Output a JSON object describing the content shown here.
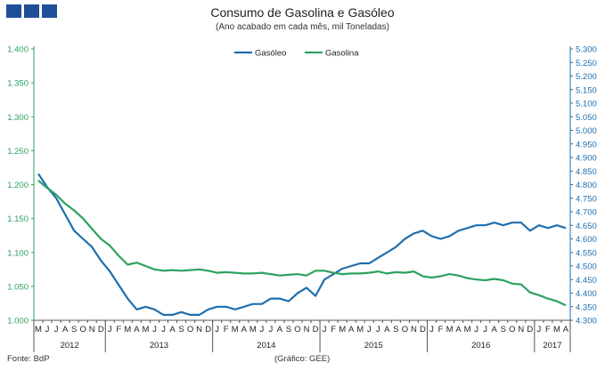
{
  "header": {
    "title": "Consumo de Gasolina e Gasóleo",
    "subtitle": "(Ano acabado em cada mês,  mil Toneladas)"
  },
  "footer": {
    "source": "Fonte: BdP",
    "credit": "(Gráfico: GEE)"
  },
  "colors": {
    "logo": "#1f4e9a",
    "gasoleo": "#1f6fae",
    "gasolina": "#2ca25f",
    "axis_left_text": "#2ca25f",
    "axis_right_text": "#1f6fae",
    "axis_line_left": "#2ca25f",
    "axis_line_right": "#1f6fae"
  },
  "chart_data": {
    "type": "line",
    "title": "Consumo de Gasolina e Gasóleo",
    "subtitle": "(Ano acabado em cada mês,  mil Toneladas)",
    "x": [
      "2012-05",
      "2012-06",
      "2012-07",
      "2012-08",
      "2012-09",
      "2012-10",
      "2012-11",
      "2012-12",
      "2013-01",
      "2013-02",
      "2013-03",
      "2013-04",
      "2013-05",
      "2013-06",
      "2013-07",
      "2013-08",
      "2013-09",
      "2013-10",
      "2013-11",
      "2013-12",
      "2014-01",
      "2014-02",
      "2014-03",
      "2014-04",
      "2014-05",
      "2014-06",
      "2014-07",
      "2014-08",
      "2014-09",
      "2014-10",
      "2014-11",
      "2014-12",
      "2015-01",
      "2015-02",
      "2015-03",
      "2015-04",
      "2015-05",
      "2015-06",
      "2015-07",
      "2015-08",
      "2015-09",
      "2015-10",
      "2015-11",
      "2015-12",
      "2016-01",
      "2016-02",
      "2016-03",
      "2016-04",
      "2016-05",
      "2016-06",
      "2016-07",
      "2016-08",
      "2016-09",
      "2016-10",
      "2016-11",
      "2016-12",
      "2017-01",
      "2017-02",
      "2017-03",
      "2017-04"
    ],
    "month_ticks": [
      "M",
      "J",
      "J",
      "A",
      "S",
      "O",
      "N",
      "D",
      "J",
      "F",
      "M",
      "A",
      "M",
      "J",
      "J",
      "A",
      "S",
      "O",
      "N",
      "D",
      "J",
      "F",
      "M",
      "A",
      "M",
      "J",
      "J",
      "A",
      "S",
      "O",
      "N",
      "D",
      "J",
      "F",
      "M",
      "A",
      "M",
      "J",
      "J",
      "A",
      "S",
      "O",
      "N",
      "D",
      "J",
      "F",
      "M",
      "A",
      "M",
      "J",
      "J",
      "A",
      "S",
      "O",
      "N",
      "D",
      "J",
      "F",
      "M",
      "A"
    ],
    "year_groups": [
      {
        "label": "2012",
        "months": 8
      },
      {
        "label": "2013",
        "months": 12
      },
      {
        "label": "2014",
        "months": 12
      },
      {
        "label": "2015",
        "months": 12
      },
      {
        "label": "2016",
        "months": 12
      },
      {
        "label": "2017",
        "months": 4
      }
    ],
    "y_left": {
      "min": 1.0,
      "max": 1.4,
      "step": 0.05,
      "ticks": [
        "1.000",
        "1.050",
        "1.100",
        "1.150",
        "1.200",
        "1.250",
        "1.300",
        "1.350",
        "1.400"
      ]
    },
    "y_right": {
      "min": 4.3,
      "max": 5.3,
      "step": 0.05,
      "ticks": [
        "4.300",
        "4.350",
        "4.400",
        "4.450",
        "4.500",
        "4.550",
        "4.600",
        "4.650",
        "4.700",
        "4.750",
        "4.800",
        "4.850",
        "4.900",
        "4.950",
        "5.000",
        "5.050",
        "5.100",
        "5.150",
        "5.200",
        "5.250",
        "5.300"
      ]
    },
    "legend_position": "top-center",
    "grid": false,
    "series": [
      {
        "name": "Gasóleo",
        "axis": "right",
        "values": [
          4.84,
          4.79,
          4.75,
          4.69,
          4.63,
          4.6,
          4.57,
          4.52,
          4.48,
          4.43,
          4.38,
          4.34,
          4.35,
          4.34,
          4.32,
          4.32,
          4.33,
          4.32,
          4.32,
          4.34,
          4.35,
          4.35,
          4.34,
          4.35,
          4.36,
          4.36,
          4.38,
          4.38,
          4.37,
          4.4,
          4.42,
          4.39,
          4.45,
          4.47,
          4.49,
          4.5,
          4.51,
          4.51,
          4.53,
          4.55,
          4.57,
          4.6,
          4.62,
          4.63,
          4.61,
          4.6,
          4.61,
          4.63,
          4.64,
          4.65,
          4.65,
          4.66,
          4.65,
          4.66,
          4.66,
          4.63,
          4.65,
          4.64,
          4.65,
          4.64
        ]
      },
      {
        "name": "Gasolina",
        "axis": "left",
        "values": [
          1.206,
          1.195,
          1.185,
          1.172,
          1.162,
          1.15,
          1.135,
          1.12,
          1.11,
          1.095,
          1.082,
          1.085,
          1.08,
          1.075,
          1.073,
          1.074,
          1.073,
          1.074,
          1.075,
          1.073,
          1.07,
          1.071,
          1.07,
          1.069,
          1.069,
          1.07,
          1.068,
          1.066,
          1.067,
          1.068,
          1.066,
          1.073,
          1.073,
          1.07,
          1.068,
          1.069,
          1.069,
          1.07,
          1.072,
          1.069,
          1.071,
          1.07,
          1.072,
          1.065,
          1.063,
          1.065,
          1.068,
          1.066,
          1.062,
          1.06,
          1.059,
          1.061,
          1.059,
          1.054,
          1.053,
          1.041,
          1.037,
          1.032,
          1.028,
          1.022
        ]
      }
    ]
  }
}
